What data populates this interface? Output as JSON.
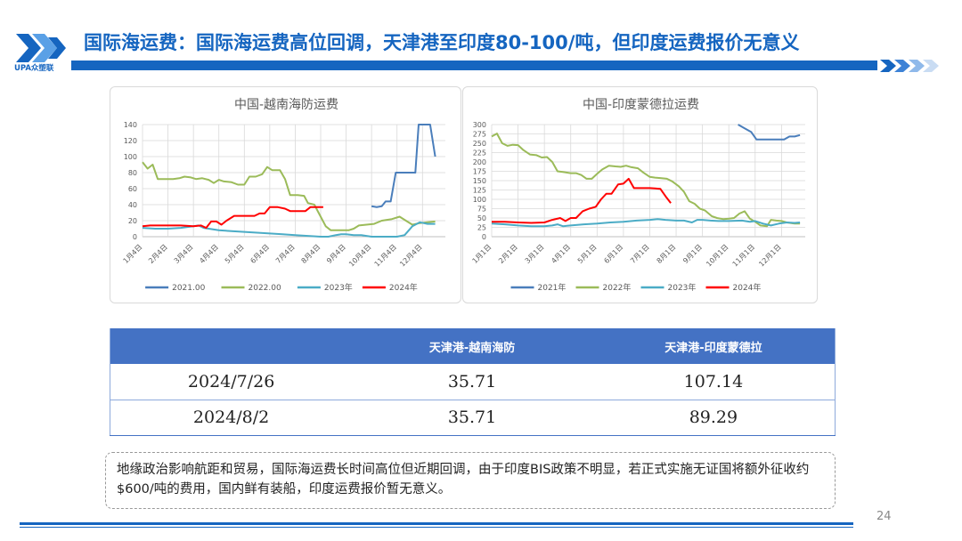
{
  "header": {
    "logo_text": "UPA众塑联",
    "title": "国际海运费：国际海运费高位回调，天津港至印度80-100/吨，但印度运费报价无意义"
  },
  "colors": {
    "brand_blue": "#1565c0",
    "table_header": "#4472c4",
    "s2021": "#4a7ebb",
    "s2022": "#9bbb59",
    "s2023": "#4bacc6",
    "s2024": "#ff0000"
  },
  "chart_data": [
    {
      "type": "line",
      "title": "中国-越南海防运费",
      "ylim": [
        0,
        140
      ],
      "yticks": [
        0,
        20,
        40,
        60,
        80,
        100,
        120,
        140
      ],
      "x_ticks": [
        "1月4日",
        "2月4日",
        "3月4日",
        "4月4日",
        "5月4日",
        "6月4日",
        "7月4日",
        "8月4日",
        "9月4日",
        "10月4日",
        "11月4日",
        "12月4日"
      ],
      "xlim": [
        1,
        12.9
      ],
      "legend_position": "bottom",
      "series": [
        {
          "name": "2021.00",
          "color": "#4a7ebb",
          "points": [
            [
              10.0,
              38
            ],
            [
              10.2,
              37
            ],
            [
              10.4,
              38
            ],
            [
              10.55,
              44
            ],
            [
              10.75,
              44
            ],
            [
              10.95,
              80
            ],
            [
              11.2,
              80
            ],
            [
              11.5,
              80
            ],
            [
              11.72,
              80
            ],
            [
              11.85,
              140
            ],
            [
              12.05,
              140
            ],
            [
              12.3,
              140
            ],
            [
              12.5,
              100
            ]
          ]
        },
        {
          "name": "2022.00",
          "color": "#9bbb59",
          "points": [
            [
              1.0,
              93
            ],
            [
              1.2,
              85
            ],
            [
              1.4,
              90
            ],
            [
              1.6,
              72
            ],
            [
              1.9,
              72
            ],
            [
              2.2,
              72
            ],
            [
              2.45,
              73
            ],
            [
              2.65,
              75
            ],
            [
              2.9,
              74
            ],
            [
              3.1,
              72
            ],
            [
              3.35,
              73
            ],
            [
              3.6,
              71
            ],
            [
              3.8,
              67
            ],
            [
              4.0,
              71
            ],
            [
              4.2,
              69
            ],
            [
              4.5,
              68
            ],
            [
              4.75,
              65
            ],
            [
              5.0,
              65
            ],
            [
              5.2,
              75
            ],
            [
              5.45,
              75
            ],
            [
              5.7,
              78
            ],
            [
              5.9,
              87
            ],
            [
              6.1,
              83
            ],
            [
              6.4,
              83
            ],
            [
              6.6,
              72
            ],
            [
              6.8,
              52
            ],
            [
              7.1,
              52
            ],
            [
              7.35,
              51
            ],
            [
              7.5,
              42
            ],
            [
              7.75,
              40
            ],
            [
              8.0,
              25
            ],
            [
              8.2,
              13
            ],
            [
              8.4,
              8
            ],
            [
              8.7,
              8
            ],
            [
              9.1,
              8
            ],
            [
              9.3,
              10
            ],
            [
              9.5,
              14
            ],
            [
              9.8,
              15
            ],
            [
              10.1,
              16
            ],
            [
              10.4,
              20
            ],
            [
              10.8,
              22
            ],
            [
              11.1,
              25
            ],
            [
              11.4,
              19
            ],
            [
              11.6,
              15
            ],
            [
              11.9,
              17
            ],
            [
              12.2,
              18
            ],
            [
              12.5,
              19
            ]
          ]
        },
        {
          "name": "2023年",
          "color": "#4bacc6",
          "points": [
            [
              1.0,
              11
            ],
            [
              1.5,
              10
            ],
            [
              2.0,
              10
            ],
            [
              2.5,
              11
            ],
            [
              3.0,
              13
            ],
            [
              3.2,
              14
            ],
            [
              3.4,
              11
            ],
            [
              3.6,
              10
            ],
            [
              4.0,
              8
            ],
            [
              4.5,
              7
            ],
            [
              5.0,
              6
            ],
            [
              5.5,
              5
            ],
            [
              6.0,
              4
            ],
            [
              6.5,
              3
            ],
            [
              7.0,
              2
            ],
            [
              7.5,
              1
            ],
            [
              8.0,
              0
            ],
            [
              8.3,
              0
            ],
            [
              8.6,
              2
            ],
            [
              8.8,
              3
            ],
            [
              9.0,
              3
            ],
            [
              9.3,
              2
            ],
            [
              9.6,
              2
            ],
            [
              10.0,
              0
            ],
            [
              10.5,
              0
            ],
            [
              11.0,
              0
            ],
            [
              11.3,
              2
            ],
            [
              11.6,
              13
            ],
            [
              11.9,
              18
            ],
            [
              12.2,
              16
            ],
            [
              12.5,
              16
            ]
          ]
        },
        {
          "name": "2024年",
          "color": "#ff0000",
          "points": [
            [
              1.0,
              13
            ],
            [
              1.3,
              14
            ],
            [
              1.6,
              14
            ],
            [
              2.0,
              14
            ],
            [
              2.5,
              14
            ],
            [
              3.0,
              13
            ],
            [
              3.3,
              14
            ],
            [
              3.5,
              11
            ],
            [
              3.7,
              19
            ],
            [
              3.9,
              19
            ],
            [
              4.1,
              15
            ],
            [
              4.3,
              20
            ],
            [
              4.6,
              26
            ],
            [
              5.0,
              26
            ],
            [
              5.4,
              26
            ],
            [
              5.6,
              29
            ],
            [
              5.8,
              29
            ],
            [
              6.0,
              37
            ],
            [
              6.3,
              37
            ],
            [
              6.6,
              35
            ],
            [
              6.8,
              32
            ],
            [
              7.1,
              32
            ],
            [
              7.4,
              32
            ],
            [
              7.6,
              37
            ],
            [
              7.85,
              37
            ],
            [
              8.1,
              37
            ]
          ]
        }
      ]
    },
    {
      "type": "line",
      "title": "中国-印度蒙德拉运费",
      "ylim": [
        0,
        300
      ],
      "yticks": [
        0,
        25,
        50,
        75,
        100,
        125,
        150,
        175,
        200,
        225,
        250,
        275,
        300
      ],
      "x_ticks": [
        "1月1日",
        "2月1日",
        "3月1日",
        "4月1日",
        "5月1日",
        "6月1日",
        "7月1日",
        "8月1日",
        "9月1日",
        "10月1日",
        "11月1日",
        "12月1日"
      ],
      "xlim": [
        1,
        12.9
      ],
      "legend_position": "bottom",
      "series": [
        {
          "name": "2021年",
          "color": "#4a7ebb",
          "points": [
            [
              10.35,
              300
            ],
            [
              10.6,
              290
            ],
            [
              10.85,
              280
            ],
            [
              11.05,
              260
            ],
            [
              11.3,
              260
            ],
            [
              11.6,
              260
            ],
            [
              11.9,
              260
            ],
            [
              12.1,
              260
            ],
            [
              12.3,
              268
            ],
            [
              12.5,
              268
            ],
            [
              12.7,
              272
            ]
          ]
        },
        {
          "name": "2022年",
          "color": "#9bbb59",
          "points": [
            [
              1.0,
              268
            ],
            [
              1.2,
              276
            ],
            [
              1.4,
              250
            ],
            [
              1.6,
              243
            ],
            [
              1.8,
              246
            ],
            [
              2.0,
              245
            ],
            [
              2.2,
              232
            ],
            [
              2.45,
              220
            ],
            [
              2.7,
              218
            ],
            [
              2.9,
              212
            ],
            [
              3.1,
              213
            ],
            [
              3.3,
              200
            ],
            [
              3.5,
              175
            ],
            [
              3.7,
              173
            ],
            [
              4.0,
              170
            ],
            [
              4.2,
              170
            ],
            [
              4.4,
              165
            ],
            [
              4.6,
              155
            ],
            [
              4.8,
              155
            ],
            [
              5.0,
              168
            ],
            [
              5.2,
              180
            ],
            [
              5.45,
              190
            ],
            [
              5.7,
              188
            ],
            [
              5.9,
              187
            ],
            [
              6.1,
              190
            ],
            [
              6.3,
              186
            ],
            [
              6.55,
              183
            ],
            [
              6.75,
              172
            ],
            [
              7.0,
              160
            ],
            [
              7.2,
              158
            ],
            [
              7.4,
              157
            ],
            [
              7.65,
              155
            ],
            [
              7.85,
              148
            ],
            [
              8.1,
              135
            ],
            [
              8.3,
              120
            ],
            [
              8.5,
              95
            ],
            [
              8.7,
              88
            ],
            [
              8.9,
              75
            ],
            [
              9.1,
              70
            ],
            [
              9.35,
              55
            ],
            [
              9.55,
              50
            ],
            [
              9.8,
              47
            ],
            [
              10.0,
              48
            ],
            [
              10.2,
              50
            ],
            [
              10.4,
              62
            ],
            [
              10.6,
              68
            ],
            [
              10.8,
              48
            ],
            [
              11.0,
              40
            ],
            [
              11.2,
              30
            ],
            [
              11.45,
              28
            ],
            [
              11.6,
              45
            ],
            [
              11.8,
              43
            ],
            [
              12.0,
              42
            ],
            [
              12.2,
              38
            ],
            [
              12.5,
              35
            ],
            [
              12.7,
              35
            ]
          ]
        },
        {
          "name": "2023年",
          "color": "#4bacc6",
          "points": [
            [
              1.0,
              35
            ],
            [
              1.5,
              33
            ],
            [
              2.0,
              30
            ],
            [
              2.5,
              28
            ],
            [
              3.0,
              28
            ],
            [
              3.3,
              30
            ],
            [
              3.5,
              33
            ],
            [
              3.7,
              28
            ],
            [
              4.0,
              30
            ],
            [
              4.5,
              33
            ],
            [
              5.0,
              35
            ],
            [
              5.5,
              38
            ],
            [
              6.0,
              40
            ],
            [
              6.5,
              43
            ],
            [
              7.0,
              45
            ],
            [
              7.3,
              47
            ],
            [
              7.6,
              45
            ],
            [
              8.0,
              43
            ],
            [
              8.3,
              43
            ],
            [
              8.6,
              38
            ],
            [
              8.8,
              45
            ],
            [
              9.0,
              45
            ],
            [
              9.3,
              43
            ],
            [
              9.6,
              42
            ],
            [
              10.0,
              42
            ],
            [
              10.5,
              43
            ],
            [
              10.8,
              40
            ],
            [
              11.0,
              42
            ],
            [
              11.3,
              35
            ],
            [
              11.6,
              30
            ],
            [
              11.9,
              35
            ],
            [
              12.2,
              38
            ],
            [
              12.5,
              37
            ],
            [
              12.7,
              38
            ]
          ]
        },
        {
          "name": "2024年",
          "color": "#ff0000",
          "points": [
            [
              1.0,
              40
            ],
            [
              1.5,
              40
            ],
            [
              2.0,
              38
            ],
            [
              2.5,
              37
            ],
            [
              3.0,
              38
            ],
            [
              3.3,
              45
            ],
            [
              3.6,
              50
            ],
            [
              3.8,
              42
            ],
            [
              4.0,
              50
            ],
            [
              4.2,
              50
            ],
            [
              4.45,
              68
            ],
            [
              4.7,
              75
            ],
            [
              4.95,
              80
            ],
            [
              5.15,
              100
            ],
            [
              5.35,
              115
            ],
            [
              5.55,
              115
            ],
            [
              5.8,
              140
            ],
            [
              6.0,
              142
            ],
            [
              6.2,
              155
            ],
            [
              6.4,
              130
            ],
            [
              6.7,
              130
            ],
            [
              7.0,
              130
            ],
            [
              7.2,
              129
            ],
            [
              7.4,
              128
            ],
            [
              7.6,
              108
            ],
            [
              7.8,
              90
            ]
          ]
        }
      ]
    }
  ],
  "table": {
    "headers": [
      "",
      "天津港-越南海防",
      "天津港-印度蒙德拉"
    ],
    "rows": [
      [
        "2024/7/26",
        "35.71",
        "107.14"
      ],
      [
        "2024/8/2",
        "35.71",
        "89.29"
      ]
    ]
  },
  "note": "地缘政治影响航距和贸易，国际海运费长时间高位但近期回调，由于印度BIS政策不明显，若正式实施无证国将额外征收约$600/吨的费用，国内鲜有装船，印度运费报价暂无意义。",
  "page_number": "24"
}
